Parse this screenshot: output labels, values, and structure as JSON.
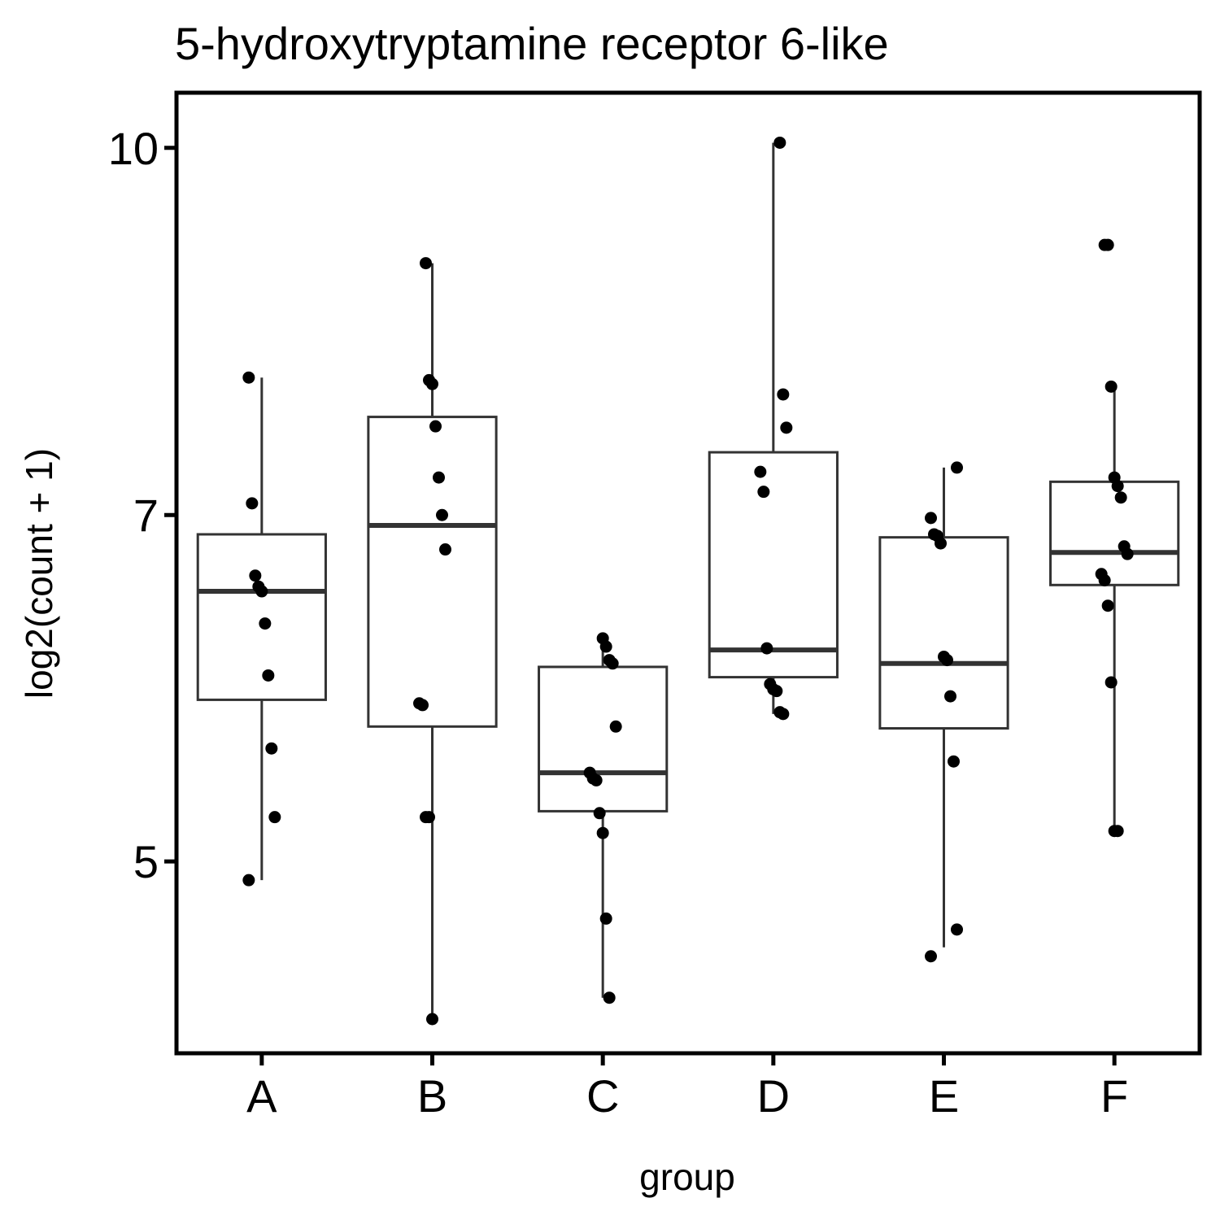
{
  "chart_data": {
    "type": "boxplot",
    "title": "5-hydroxytryptamine receptor 6-like",
    "xlabel": "group",
    "ylabel": "log2(count + 1)",
    "y_scale": "log",
    "y_ticks": [
      5,
      7,
      10
    ],
    "ylim": [
      4.15,
      10.55
    ],
    "grid": false,
    "legend": "none",
    "categories": [
      "A",
      "B",
      "C",
      "D",
      "E",
      "F"
    ],
    "boxes": [
      {
        "group": "A",
        "whisker_low": 4.91,
        "q1": 5.85,
        "median": 6.5,
        "q3": 6.87,
        "whisker_high": 8.0
      },
      {
        "group": "B",
        "whisker_low": 4.29,
        "q1": 5.7,
        "median": 6.93,
        "q3": 7.7,
        "whisker_high": 8.94
      },
      {
        "group": "C",
        "whisker_low": 4.38,
        "q1": 5.25,
        "median": 5.45,
        "q3": 6.04,
        "whisker_high": 6.21
      },
      {
        "group": "D",
        "whisker_low": 5.77,
        "q1": 5.98,
        "median": 6.14,
        "q3": 7.44,
        "whisker_high": 10.05
      },
      {
        "group": "E",
        "whisker_low": 4.6,
        "q1": 5.69,
        "median": 6.06,
        "q3": 6.85,
        "whisker_high": 7.33
      },
      {
        "group": "F",
        "whisker_low": 5.15,
        "q1": 6.54,
        "median": 6.75,
        "q3": 7.23,
        "whisker_high": 7.93
      }
    ],
    "points": [
      {
        "group": "A",
        "values": [
          8.0,
          7.08,
          6.6,
          6.53,
          6.5,
          6.3,
          5.99,
          5.58,
          5.22,
          4.91
        ]
      },
      {
        "group": "B",
        "values": [
          8.94,
          7.98,
          7.95,
          7.63,
          7.26,
          7.0,
          6.77,
          5.83,
          5.82,
          5.22,
          5.22,
          4.29
        ]
      },
      {
        "group": "C",
        "values": [
          6.21,
          6.16,
          6.08,
          6.06,
          5.7,
          5.45,
          5.42,
          5.41,
          5.24,
          5.14,
          4.73,
          4.38
        ]
      },
      {
        "group": "D",
        "values": [
          10.05,
          7.87,
          7.62,
          7.3,
          7.16,
          6.15,
          5.94,
          5.91,
          5.9,
          5.78,
          5.77
        ]
      },
      {
        "group": "E",
        "values": [
          7.33,
          6.98,
          6.87,
          6.86,
          6.81,
          6.1,
          6.08,
          5.87,
          5.51,
          4.68,
          4.56
        ]
      },
      {
        "group": "F",
        "values": [
          9.1,
          9.1,
          7.93,
          7.26,
          7.2,
          7.12,
          6.79,
          6.74,
          6.61,
          6.57,
          6.41,
          5.95,
          5.15,
          5.15
        ]
      }
    ]
  }
}
